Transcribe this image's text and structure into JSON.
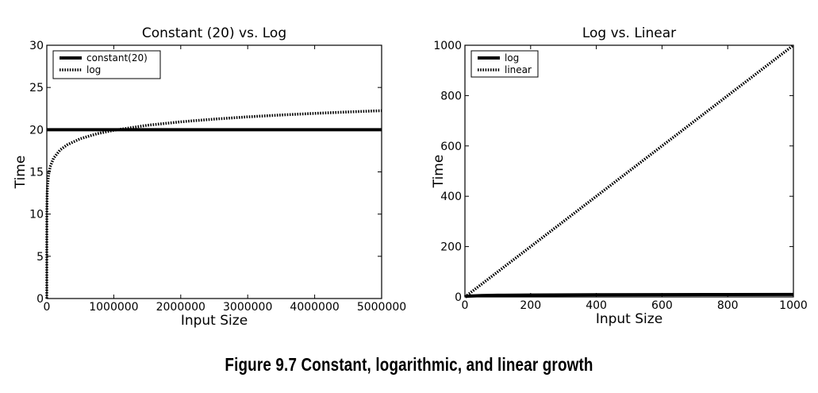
{
  "caption": "Figure 9.7 Constant, logarithmic, and linear growth",
  "chart_data": [
    {
      "type": "line",
      "title": "Constant (20) vs. Log",
      "xlabel": "Input Size",
      "ylabel": "Time",
      "xlim": [
        0,
        5000000
      ],
      "ylim": [
        0,
        30
      ],
      "xticks": [
        "0",
        "1000000",
        "2000000",
        "3000000",
        "4000000",
        "5000000"
      ],
      "yticks": [
        "0",
        "5",
        "10",
        "15",
        "20",
        "25",
        "30"
      ],
      "grid": false,
      "legend_position": "top-left",
      "series": [
        {
          "name": "constant(20)",
          "style": "solid",
          "color": "#000000",
          "x": [
            0,
            1000000,
            2000000,
            3000000,
            4000000,
            5000000
          ],
          "y": [
            20,
            20,
            20,
            20,
            20,
            20
          ]
        },
        {
          "name": "log",
          "style": "dotted",
          "color": "#000000",
          "x": [
            1,
            10,
            100,
            1000,
            5000,
            10000,
            25000,
            50000,
            100000,
            200000,
            300000,
            500000,
            750000,
            1000000,
            1500000,
            2000000,
            2500000,
            3000000,
            3500000,
            4000000,
            4500000,
            5000000
          ],
          "y": [
            0,
            3.32,
            6.64,
            9.97,
            12.29,
            13.29,
            14.61,
            15.61,
            16.61,
            17.61,
            18.19,
            18.93,
            19.52,
            19.93,
            20.52,
            20.93,
            21.25,
            21.52,
            21.74,
            21.93,
            22.1,
            22.25
          ]
        }
      ]
    },
    {
      "type": "line",
      "title": "Log vs. Linear",
      "xlabel": "Input Size",
      "ylabel": "Time",
      "xlim": [
        0,
        1000
      ],
      "ylim": [
        0,
        1000
      ],
      "xticks": [
        "0",
        "200",
        "400",
        "600",
        "800",
        "1000"
      ],
      "yticks": [
        "0",
        "200",
        "400",
        "600",
        "800",
        "1000"
      ],
      "grid": false,
      "legend_position": "top-left",
      "series": [
        {
          "name": "log",
          "style": "solid",
          "color": "#000000",
          "x": [
            1,
            2,
            5,
            10,
            50,
            100,
            200,
            400,
            600,
            800,
            1000
          ],
          "y": [
            0,
            1,
            2.32,
            3.32,
            5.64,
            6.64,
            7.64,
            8.64,
            9.23,
            9.64,
            9.97
          ]
        },
        {
          "name": "linear",
          "style": "dotted",
          "color": "#000000",
          "x": [
            0,
            1000
          ],
          "y": [
            0,
            1000
          ]
        }
      ]
    }
  ]
}
